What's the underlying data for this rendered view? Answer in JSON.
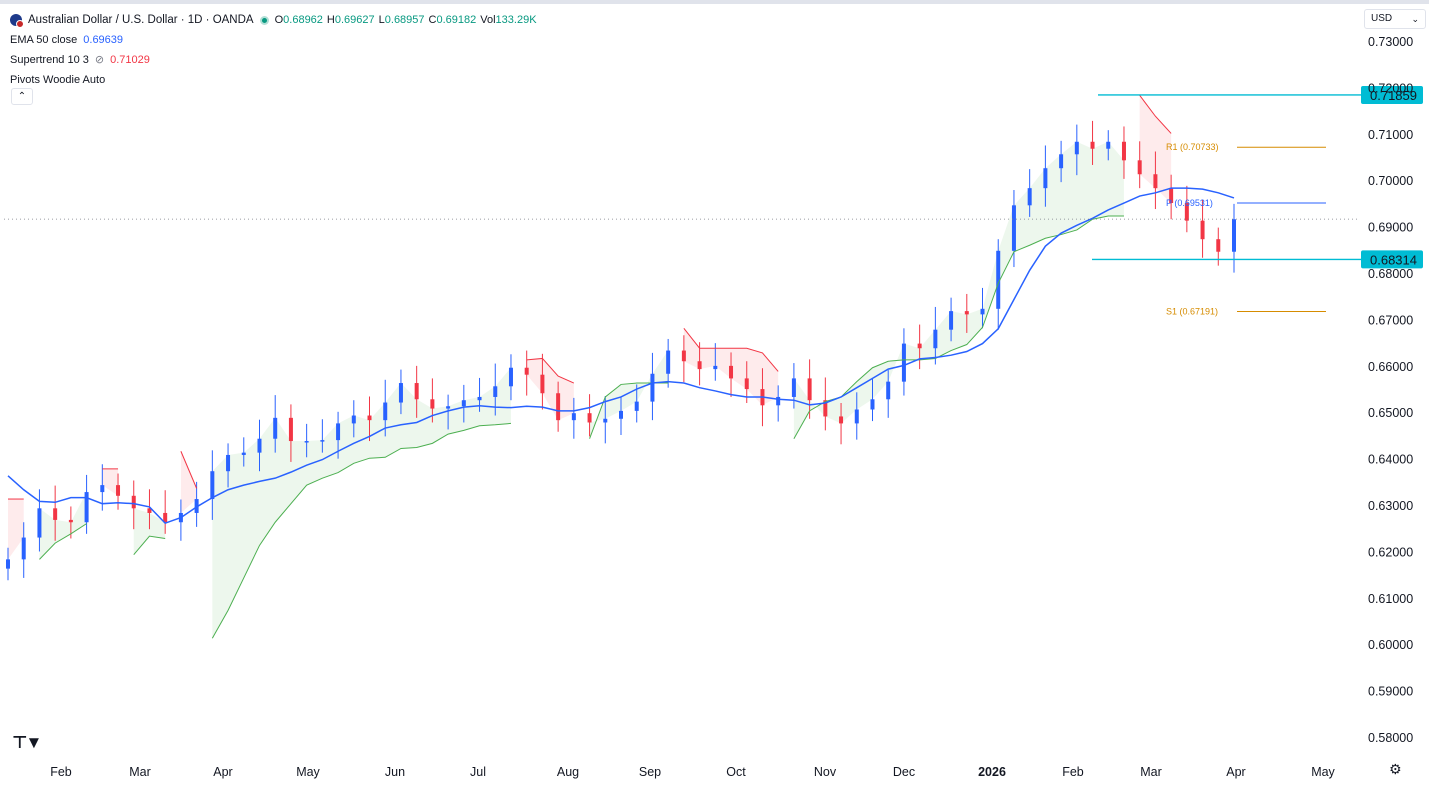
{
  "header": {
    "symbol_icon": "aud-usd-flag-icon",
    "title": "Australian Dollar / U.S. Dollar · 1D · OANDA",
    "ohlc": [
      {
        "k": "O",
        "v": "0.68962"
      },
      {
        "k": "H",
        "v": "0.69627"
      },
      {
        "k": "L",
        "v": "0.68957"
      },
      {
        "k": "C",
        "v": "0.69182"
      },
      {
        "k": "Vol",
        "v": "133.29K"
      }
    ],
    "currency": "USD"
  },
  "indicators": [
    {
      "name": "EMA 50 close",
      "value": "0.69639",
      "color": "#2962ff"
    },
    {
      "name": "Supertrend 10 3",
      "value": "0.71029",
      "color": "#f23645"
    },
    {
      "name": "Pivots Woodie Auto",
      "value": ""
    }
  ],
  "chart_data": {
    "type": "line",
    "title": "Australian Dollar / U.S. Dollar · 1D · OANDA",
    "xlabel": "",
    "ylabel": "",
    "ylim": [
      0.575,
      0.7335
    ],
    "y_ticks": [
      "0.73000",
      "0.72000",
      "0.71000",
      "0.70000",
      "0.69000",
      "0.68000",
      "0.67000",
      "0.66000",
      "0.65000",
      "0.64000",
      "0.63000",
      "0.62000",
      "0.61000",
      "0.60000",
      "0.59000",
      "0.58000"
    ],
    "x_ticks": [
      "Feb",
      "Mar",
      "Apr",
      "May",
      "Jun",
      "Jul",
      "Aug",
      "Sep",
      "Oct",
      "Nov",
      "Dec",
      "2026",
      "Feb",
      "Mar",
      "Apr",
      "May"
    ],
    "grid": false,
    "series": [
      {
        "name": "EMA 50 close",
        "color": "#2962ff",
        "values": [
          0.6365,
          0.6335,
          0.631,
          0.6308,
          0.6318,
          0.6318,
          0.6305,
          0.6307,
          0.6305,
          0.6298,
          0.6263,
          0.6275,
          0.6298,
          0.6318,
          0.6335,
          0.6345,
          0.6353,
          0.636,
          0.6373,
          0.6388,
          0.64,
          0.6418,
          0.6435,
          0.645,
          0.6468,
          0.6475,
          0.648,
          0.6495,
          0.6505,
          0.6513,
          0.6516,
          0.6513,
          0.6512,
          0.6515,
          0.6513,
          0.6505,
          0.6505,
          0.6512,
          0.6525,
          0.6535,
          0.6552,
          0.6565,
          0.6568,
          0.6565,
          0.6555,
          0.6548,
          0.654,
          0.6535,
          0.6535,
          0.653,
          0.6528,
          0.6518,
          0.6522,
          0.6535,
          0.6555,
          0.6575,
          0.6595,
          0.6603,
          0.6617,
          0.662,
          0.6625,
          0.6633,
          0.665,
          0.6682,
          0.6745,
          0.6808,
          0.686,
          0.6888,
          0.6905,
          0.692,
          0.6938,
          0.6953,
          0.6968,
          0.6975,
          0.6985,
          0.6985,
          0.6983,
          0.6975,
          0.6964
        ]
      },
      {
        "name": "Price",
        "color": "#089981",
        "values": [
          0.6185,
          0.6232,
          0.6295,
          0.627,
          0.6265,
          0.633,
          0.6345,
          0.6322,
          0.6295,
          0.6285,
          0.6265,
          0.6285,
          0.6315,
          0.6375,
          0.641,
          0.6415,
          0.6445,
          0.649,
          0.644,
          0.644,
          0.6442,
          0.6478,
          0.6495,
          0.6485,
          0.6523,
          0.6565,
          0.653,
          0.651,
          0.6515,
          0.6528,
          0.6535,
          0.6558,
          0.6598,
          0.6583,
          0.6543,
          0.6485,
          0.65,
          0.648,
          0.6488,
          0.6505,
          0.6525,
          0.6585,
          0.6635,
          0.6612,
          0.6595,
          0.6602,
          0.6575,
          0.6552,
          0.6517,
          0.6535,
          0.6575,
          0.6528,
          0.6493,
          0.6478,
          0.6508,
          0.653,
          0.6568,
          0.665,
          0.664,
          0.668,
          0.672,
          0.6713,
          0.6725,
          0.685,
          0.6948,
          0.6985,
          0.7028,
          0.7058,
          0.7085,
          0.707,
          0.7085,
          0.7045,
          0.7015,
          0.6985,
          0.6953,
          0.6915,
          0.6875,
          0.6848,
          0.6918
        ]
      }
    ],
    "supertrend": [
      {
        "trend": "down",
        "values": [
          0.6315,
          0.6315
        ]
      },
      {
        "trend": "up",
        "values": [
          0.6185,
          0.622,
          0.624,
          0.6262
        ]
      },
      {
        "trend": "down",
        "values": [
          0.638,
          0.638
        ]
      },
      {
        "trend": "up",
        "values": [
          0.6195,
          0.6235,
          0.623
        ]
      },
      {
        "trend": "down",
        "values": [
          0.6418,
          0.6338
        ]
      },
      {
        "trend": "up",
        "values": [
          0.6015,
          0.6075,
          0.6145,
          0.6215,
          0.6265,
          0.6305,
          0.6345,
          0.636,
          0.6372,
          0.6392,
          0.6403,
          0.6405,
          0.6424,
          0.6426,
          0.6435,
          0.6455,
          0.6463,
          0.6473,
          0.6475,
          0.6478
        ]
      },
      {
        "trend": "down",
        "values": [
          0.6615,
          0.6618,
          0.658,
          0.6565
        ]
      },
      {
        "trend": "up",
        "values": [
          0.6445,
          0.6535,
          0.6562,
          0.6565,
          0.6565,
          0.6565
        ]
      },
      {
        "trend": "down",
        "values": [
          0.6683,
          0.664,
          0.664,
          0.664,
          0.664,
          0.663,
          0.659
        ]
      },
      {
        "trend": "up",
        "values": [
          0.6445,
          0.6505,
          0.6525,
          0.6535,
          0.6568,
          0.6598,
          0.6612,
          0.6615,
          0.6615,
          0.6618,
          0.6635,
          0.6648,
          0.6685,
          0.678,
          0.6848,
          0.6862,
          0.6877,
          0.6885,
          0.6895,
          0.6918,
          0.6925,
          0.6925
        ]
      },
      {
        "trend": "down",
        "values": [
          0.7185,
          0.714,
          0.7103
        ]
      }
    ],
    "pivots": [
      {
        "label": "R1 (0.70733)",
        "value": 0.70733,
        "color": "#d68c00"
      },
      {
        "label": "P (0.69531)",
        "value": 0.69531,
        "color": "#2962ff"
      },
      {
        "label": "S1 (0.67191)",
        "value": 0.67191,
        "color": "#d68c00"
      }
    ],
    "annotations": [
      {
        "label": "0.71859",
        "value": 0.71859,
        "color": "#00bcd4"
      },
      {
        "label": "0.68314",
        "value": 0.68314,
        "color": "#00bcd4"
      }
    ],
    "last_price": 0.69182,
    "legend": "top-left"
  }
}
